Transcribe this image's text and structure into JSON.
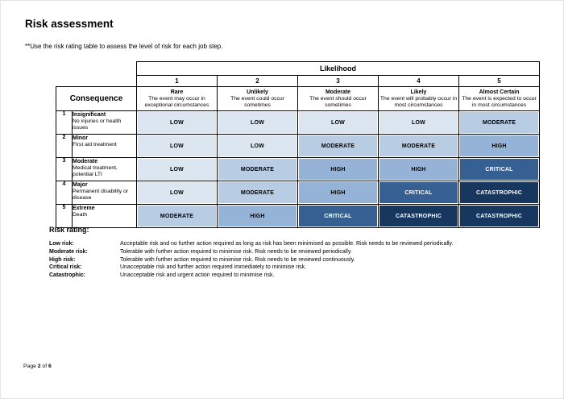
{
  "page": {
    "title": "Risk assessment",
    "subtitle": "**Use the risk rating table to assess the level of risk for each job step.",
    "footer": {
      "prefix": "Page",
      "page_number": "2",
      "separator": "of",
      "total_pages": "6"
    }
  },
  "table": {
    "likelihood_header": "Likelihood",
    "consequence_header": "Consequence",
    "likelihood_levels": [
      {
        "number": "1",
        "name": "Rare",
        "description": "The event may occur in exceptional circumstances"
      },
      {
        "number": "2",
        "name": "Unlikely",
        "description": "The event could occur sometimes"
      },
      {
        "number": "3",
        "name": "Moderate",
        "description": "The event should occur sometimes"
      },
      {
        "number": "4",
        "name": "Likely",
        "description": "The event will probably occur in most circumstances"
      },
      {
        "number": "5",
        "name": "Almost Certain",
        "description": "The event is expected to occur in most circumstances"
      }
    ],
    "consequence_levels": [
      {
        "number": "1",
        "name": "Insignificant",
        "description": "No injuries or health issues"
      },
      {
        "number": "2",
        "name": "Minor",
        "description": "First aid treatment"
      },
      {
        "number": "3",
        "name": "Moderate",
        "description": "Medical treatment, potential LTI"
      },
      {
        "number": "4",
        "name": "Major",
        "description": "Permanent disability or disease"
      },
      {
        "number": "5",
        "name": "Extreme",
        "description": "Death"
      }
    ],
    "matrix": [
      [
        "LOW",
        "LOW",
        "LOW",
        "LOW",
        "MODERATE"
      ],
      [
        "LOW",
        "LOW",
        "MODERATE",
        "MODERATE",
        "HIGH"
      ],
      [
        "LOW",
        "MODERATE",
        "HIGH",
        "HIGH",
        "CRITICAL"
      ],
      [
        "LOW",
        "MODERATE",
        "HIGH",
        "CRITICAL",
        "CATASTROPHIC"
      ],
      [
        "MODERATE",
        "HIGH",
        "CRITICAL",
        "CATASTROPHIC",
        "CATASTROPHIC"
      ]
    ]
  },
  "risk_colors": {
    "LOW": {
      "bg": "#dce6f1",
      "text": "#000000"
    },
    "MODERATE": {
      "bg": "#b8cce4",
      "text": "#000000"
    },
    "HIGH": {
      "bg": "#95b3d7",
      "text": "#000000"
    },
    "CRITICAL": {
      "bg": "#366092",
      "text": "#ffffff"
    },
    "CATASTROPHIC": {
      "bg": "#17375e",
      "text": "#ffffff"
    }
  },
  "risk_rating": {
    "heading": "Risk rating:",
    "items": [
      {
        "label": "Low risk:",
        "description": "Acceptable risk and no further action required as long as risk has been minimised as possible. Risk needs to be reviewed periodically."
      },
      {
        "label": "Moderate risk:",
        "description": "Tolerable with further action required to minimise risk. Risk needs to be reviewed periodically."
      },
      {
        "label": "High risk:",
        "description": "Tolerable with further action required to minimise risk. Risk needs to be reviewed continuously."
      },
      {
        "label": "Critical risk:",
        "description": "Unacceptable risk and further action required immediately to minimise risk."
      },
      {
        "label": "Catastrophic:",
        "description": "Unacceptable risk and urgent action required to minimise risk."
      }
    ]
  }
}
